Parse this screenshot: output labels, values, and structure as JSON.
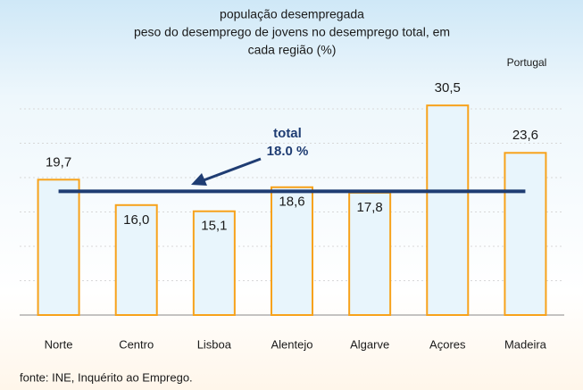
{
  "chart_data": {
    "type": "bar",
    "title_lines": [
      "população desempregada",
      "peso do desemprego de jovens no desemprego total, em",
      "cada região (%)"
    ],
    "corner_label": "Portugal",
    "categories": [
      "Norte",
      "Centro",
      "Lisboa",
      "Alentejo",
      "Algarve",
      "Açores",
      "Madeira"
    ],
    "values": [
      19.7,
      16.0,
      15.1,
      18.6,
      17.8,
      30.5,
      23.6
    ],
    "value_labels": [
      "19,7",
      "16,0",
      "15,1",
      "18,6",
      "17,8",
      "30,5",
      "23,6"
    ],
    "color": "#f7a21b",
    "ylim": [
      0,
      34
    ],
    "yticks": [
      0,
      5,
      10,
      15,
      20,
      25,
      30
    ],
    "grid": true,
    "reference_line": {
      "value": 18.0,
      "label_lines": [
        "total",
        "18.0 %"
      ],
      "color": "#1f3d73"
    },
    "source": "fonte: INE, Inquérito ao Emprego."
  }
}
